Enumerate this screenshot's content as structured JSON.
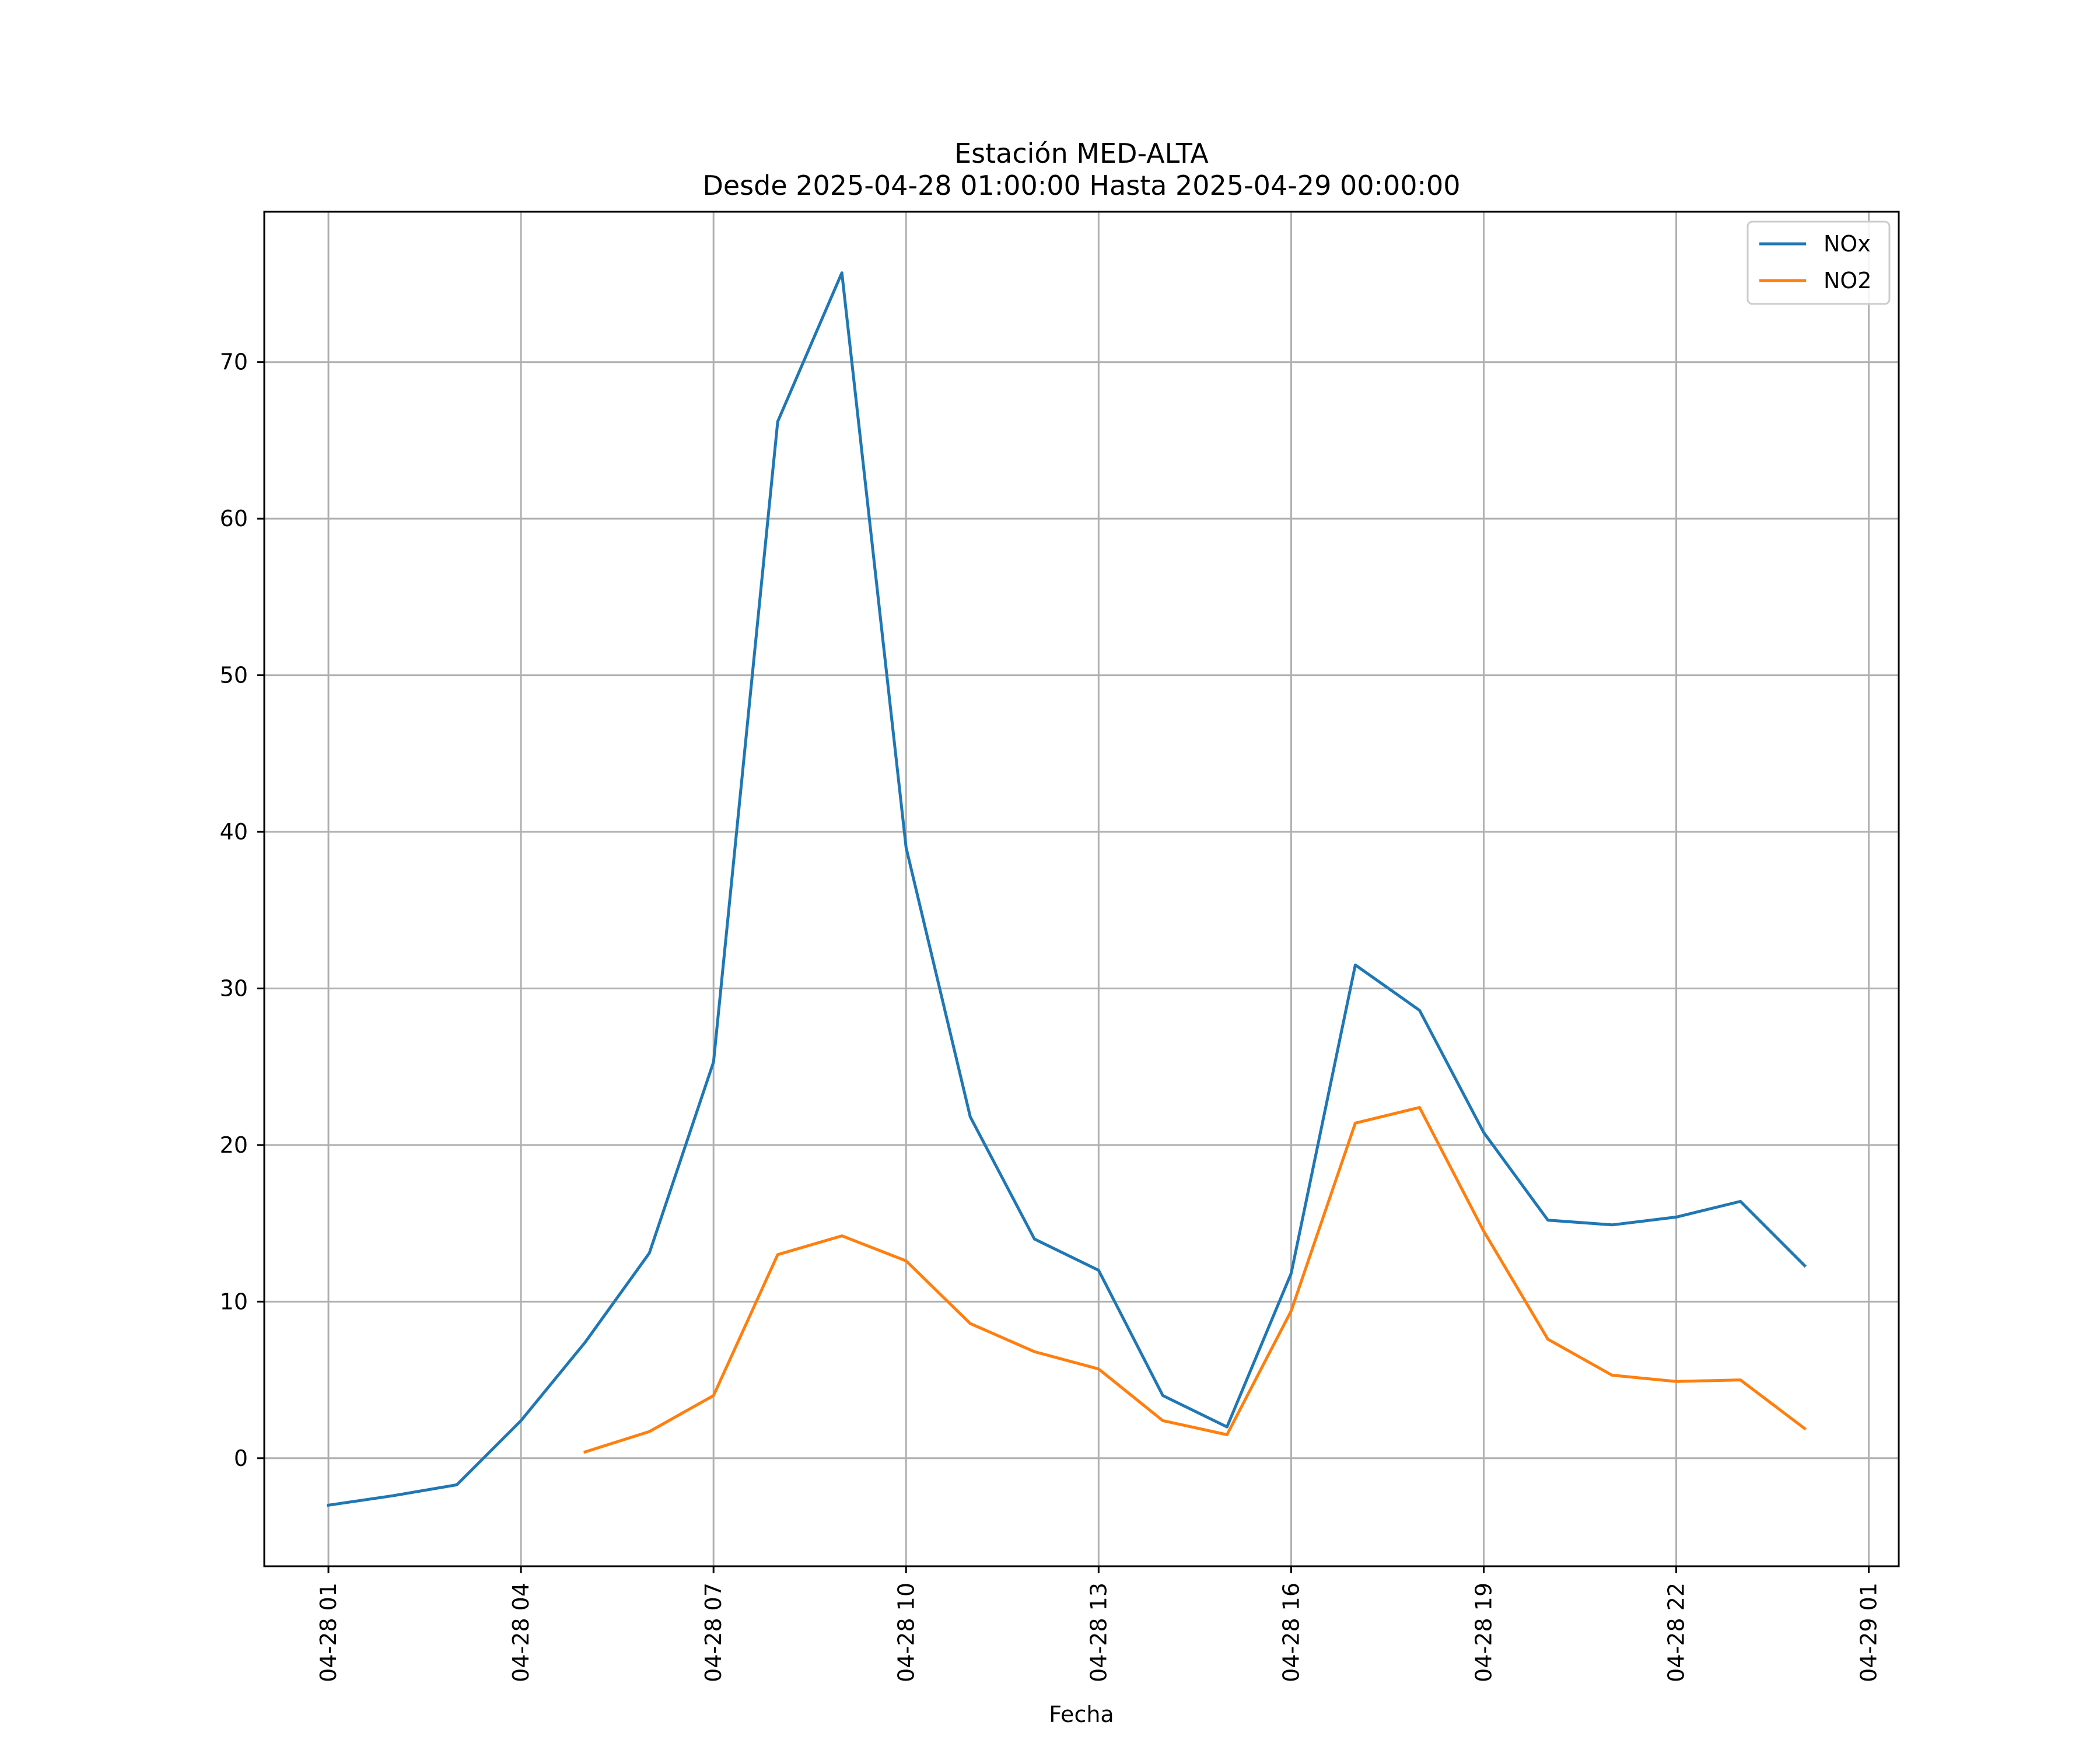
{
  "chart_data": {
    "type": "line",
    "title": "Estación MED-ALTA",
    "subtitle": "Desde 2025-04-28 01:00:00 Hasta 2025-04-29 00:00:00",
    "xlabel": "Fecha",
    "ylabel": "",
    "xlim": [
      "2025-04-28 00:00",
      "2025-04-29 01:28"
    ],
    "ylim": [
      -6.9,
      79.6
    ],
    "x_ticks": [
      {
        "label": "04-28 01",
        "value": "2025-04-28 01:00"
      },
      {
        "label": "04-28 04",
        "value": "2025-04-28 04:00"
      },
      {
        "label": "04-28 07",
        "value": "2025-04-28 07:00"
      },
      {
        "label": "04-28 10",
        "value": "2025-04-28 10:00"
      },
      {
        "label": "04-28 13",
        "value": "2025-04-28 13:00"
      },
      {
        "label": "04-28 16",
        "value": "2025-04-28 16:00"
      },
      {
        "label": "04-28 19",
        "value": "2025-04-28 19:00"
      },
      {
        "label": "04-28 22",
        "value": "2025-04-28 22:00"
      },
      {
        "label": "04-29 01",
        "value": "2025-04-29 01:00"
      }
    ],
    "y_ticks": [
      0,
      10,
      20,
      30,
      40,
      50,
      60,
      70
    ],
    "grid": true,
    "legend_position": "top-right",
    "x": [
      "2025-04-28 01:00",
      "2025-04-28 02:00",
      "2025-04-28 03:00",
      "2025-04-28 04:00",
      "2025-04-28 05:00",
      "2025-04-28 06:00",
      "2025-04-28 07:00",
      "2025-04-28 08:00",
      "2025-04-28 09:00",
      "2025-04-28 10:00",
      "2025-04-28 11:00",
      "2025-04-28 12:00",
      "2025-04-28 13:00",
      "2025-04-28 14:00",
      "2025-04-28 15:00",
      "2025-04-28 16:00",
      "2025-04-28 17:00",
      "2025-04-28 18:00",
      "2025-04-28 19:00",
      "2025-04-28 20:00",
      "2025-04-28 21:00",
      "2025-04-28 22:00",
      "2025-04-28 23:00",
      "2025-04-29 00:00"
    ],
    "series": [
      {
        "name": "NOx",
        "color": "#1f77b4",
        "values": [
          -3.0,
          -2.4,
          -1.7,
          2.4,
          7.4,
          13.1,
          25.3,
          66.2,
          75.7,
          39.0,
          21.8,
          14.0,
          12.0,
          4.0,
          2.0,
          11.8,
          31.5,
          28.6,
          20.8,
          15.2,
          14.9,
          15.4,
          16.4,
          12.3
        ]
      },
      {
        "name": "NO2",
        "color": "#ff7f0e",
        "values": [
          null,
          null,
          null,
          null,
          0.4,
          1.7,
          4.0,
          13.0,
          14.2,
          12.6,
          8.6,
          6.8,
          5.7,
          2.4,
          1.5,
          9.4,
          21.4,
          22.4,
          14.5,
          7.6,
          5.3,
          4.9,
          5.0,
          1.9
        ]
      }
    ]
  }
}
